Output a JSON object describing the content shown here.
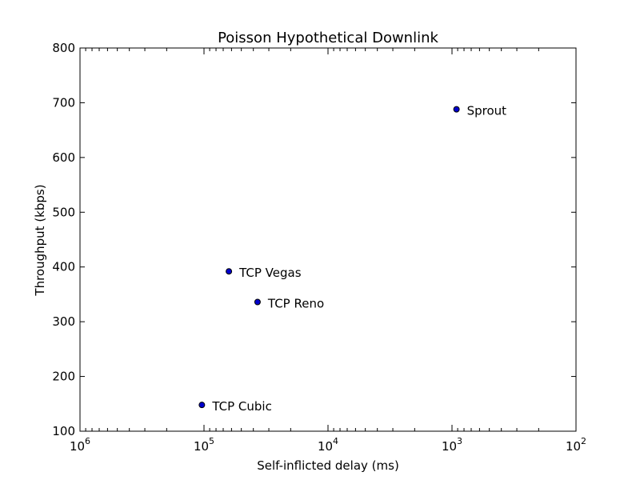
{
  "chart_data": {
    "type": "scatter",
    "title": "Poisson Hypothetical Downlink",
    "xlabel": "Self-inflicted delay (ms)",
    "ylabel": "Throughput (kbps)",
    "x_scale": "log",
    "x_inverted": true,
    "xlim": [
      1000000,
      100
    ],
    "ylim": [
      100,
      800
    ],
    "x_ticks": [
      {
        "value": 1000000,
        "base": "10",
        "exp": "6"
      },
      {
        "value": 100000,
        "base": "10",
        "exp": "5"
      },
      {
        "value": 10000,
        "base": "10",
        "exp": "4"
      },
      {
        "value": 1000,
        "base": "10",
        "exp": "3"
      },
      {
        "value": 100,
        "base": "10",
        "exp": "2"
      }
    ],
    "y_ticks": [
      "100",
      "200",
      "300",
      "400",
      "500",
      "600",
      "700",
      "800"
    ],
    "grid": false,
    "marker_color": "#0000cd",
    "points": [
      {
        "label": "Sprout",
        "x": 920,
        "y": 688
      },
      {
        "label": "TCP Vegas",
        "x": 63000,
        "y": 392
      },
      {
        "label": "TCP Reno",
        "x": 37000,
        "y": 336
      },
      {
        "label": "TCP Cubic",
        "x": 104000,
        "y": 148
      }
    ]
  }
}
